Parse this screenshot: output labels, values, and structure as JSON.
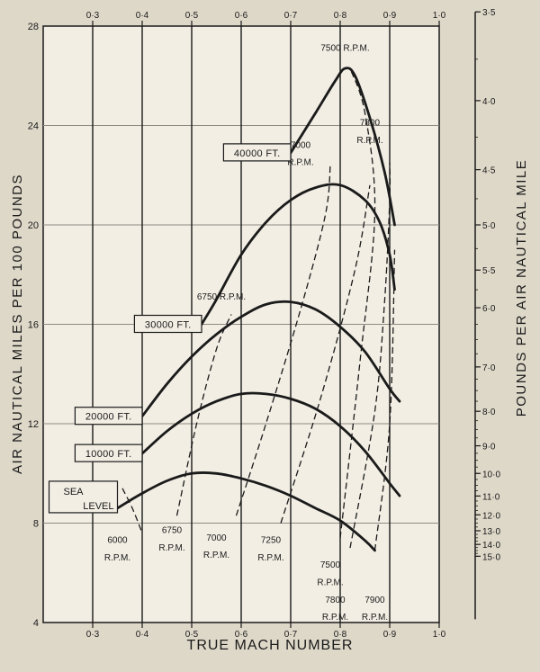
{
  "chart_data": {
    "type": "line",
    "xlabel": "TRUE MACH NUMBER",
    "ylabel": "AIR NAUTICAL MILES PER 100 POUNDS",
    "y2label": "POUNDS PER AIR NAUTICAL MILE",
    "xlim": [
      0.2,
      1.0
    ],
    "ylim": [
      4,
      28
    ],
    "grid": "major-vertical-and-horizontal",
    "x_ticks": [
      "0·3",
      "0·4",
      "0·5",
      "0·6",
      "0·7",
      "0·8",
      "0·9",
      "1·0"
    ],
    "x_tick_values": [
      0.3,
      0.4,
      0.5,
      0.6,
      0.7,
      0.8,
      0.9,
      1.0
    ],
    "y_ticks": [
      "4",
      "8",
      "12",
      "16",
      "20",
      "24",
      "28"
    ],
    "y_tick_values": [
      4,
      8,
      12,
      16,
      20,
      24,
      28
    ],
    "y2_ticks": [
      "3·5",
      "4·0",
      "4·5",
      "5·0",
      "5·5",
      "6·0",
      "7·0",
      "8·0",
      "9·0",
      "10·0",
      "11·0",
      "12·0",
      "13·0",
      "14·0",
      "15·0"
    ],
    "y2_tick_values": [
      3.5,
      4.0,
      4.5,
      5.0,
      5.5,
      6.0,
      7.0,
      8.0,
      9.0,
      10.0,
      11.0,
      12.0,
      13.0,
      14.0,
      15.0
    ],
    "series": [
      {
        "name": "SEA LEVEL",
        "x": [
          0.35,
          0.4,
          0.45,
          0.5,
          0.55,
          0.6,
          0.65,
          0.7,
          0.75,
          0.8,
          0.85,
          0.87
        ],
        "y": [
          8.6,
          9.2,
          9.7,
          10.0,
          10.0,
          9.8,
          9.5,
          9.1,
          8.6,
          8.1,
          7.3,
          6.9
        ]
      },
      {
        "name": "10000 FT.",
        "x": [
          0.4,
          0.45,
          0.5,
          0.55,
          0.6,
          0.65,
          0.7,
          0.75,
          0.8,
          0.85,
          0.9,
          0.92
        ],
        "y": [
          10.8,
          11.7,
          12.4,
          12.9,
          13.2,
          13.2,
          13.0,
          12.6,
          11.9,
          10.9,
          9.6,
          9.1
        ]
      },
      {
        "name": "20000 FT.",
        "x": [
          0.4,
          0.45,
          0.5,
          0.55,
          0.6,
          0.65,
          0.7,
          0.75,
          0.8,
          0.85,
          0.9,
          0.92
        ],
        "y": [
          12.3,
          13.6,
          14.7,
          15.6,
          16.3,
          16.8,
          16.9,
          16.6,
          15.9,
          14.9,
          13.4,
          12.9
        ]
      },
      {
        "name": "30000 FT.",
        "x": [
          0.52,
          0.55,
          0.6,
          0.65,
          0.7,
          0.75,
          0.8,
          0.85,
          0.88,
          0.9,
          0.91
        ],
        "y": [
          16.0,
          17.0,
          18.8,
          20.1,
          21.0,
          21.5,
          21.6,
          21.0,
          20.1,
          18.8,
          17.4
        ]
      },
      {
        "name": "40000 FT.",
        "x": [
          0.7,
          0.75,
          0.79,
          0.81,
          0.83,
          0.86,
          0.89,
          0.91
        ],
        "y": [
          22.9,
          24.5,
          25.8,
          26.3,
          26.0,
          24.3,
          22.1,
          20.0
        ]
      }
    ],
    "rpm_lines": [
      {
        "name": "6000 R.P.M.",
        "x": [
          0.36,
          0.38,
          0.4
        ],
        "y": [
          9.4,
          8.6,
          7.6
        ]
      },
      {
        "name": "6750 R.P.M.",
        "x": [
          0.47,
          0.51,
          0.55,
          0.58
        ],
        "y": [
          8.3,
          12.0,
          15.0,
          16.4
        ]
      },
      {
        "name": "7000 R.P.M.",
        "x": [
          0.59,
          0.65,
          0.72,
          0.77,
          0.78
        ],
        "y": [
          8.3,
          12.0,
          16.6,
          20.4,
          22.4
        ]
      },
      {
        "name": "7250 R.P.M.",
        "x": [
          0.68,
          0.76,
          0.83,
          0.86
        ],
        "y": [
          8.0,
          13.0,
          18.2,
          21.6
        ]
      },
      {
        "name": "7500 R.P.M.",
        "x": [
          0.8,
          0.84,
          0.87,
          0.85,
          0.82
        ],
        "y": [
          7.4,
          14.5,
          20.5,
          24.5,
          26.3
        ]
      },
      {
        "name": "7800 R.P.M.",
        "x": [
          0.82,
          0.87,
          0.89,
          0.9,
          0.9
        ],
        "y": [
          7.0,
          12.5,
          17.0,
          21.0,
          22.5
        ]
      },
      {
        "name": "7900 R.P.M.",
        "x": [
          0.87,
          0.9,
          0.91
        ],
        "y": [
          6.9,
          12.0,
          19.0
        ]
      }
    ],
    "annotations": [
      {
        "text": "7500 R.P.M.",
        "x": 0.81,
        "y": 27.0
      },
      {
        "text": "7800",
        "x": 0.86,
        "y": 24.0
      },
      {
        "text": "R.P.M.",
        "x": 0.86,
        "y": 23.3
      },
      {
        "text": "7000",
        "x": 0.72,
        "y": 23.1
      },
      {
        "text": "R.P.M.",
        "x": 0.72,
        "y": 22.4
      },
      {
        "text": "6750 R.P.M.",
        "x": 0.56,
        "y": 17.0
      },
      {
        "text": "6750",
        "x": 0.46,
        "y": 7.6
      },
      {
        "text": "R.P.M.",
        "x": 0.46,
        "y": 6.9
      },
      {
        "text": "7000",
        "x": 0.55,
        "y": 7.3
      },
      {
        "text": "R.P.M.",
        "x": 0.55,
        "y": 6.6
      },
      {
        "text": "7250",
        "x": 0.66,
        "y": 7.2
      },
      {
        "text": "R.P.M.",
        "x": 0.66,
        "y": 6.5
      },
      {
        "text": "6000",
        "x": 0.35,
        "y": 7.2
      },
      {
        "text": "R.P.M.",
        "x": 0.35,
        "y": 6.5
      },
      {
        "text": "7500",
        "x": 0.78,
        "y": 6.2
      },
      {
        "text": "R.P.M.",
        "x": 0.78,
        "y": 5.5
      },
      {
        "text": "7800",
        "x": 0.79,
        "y": 4.8
      },
      {
        "text": "R.P.M.",
        "x": 0.79,
        "y": 4.1
      },
      {
        "text": "7900",
        "x": 0.87,
        "y": 4.8
      },
      {
        "text": "R.P.M.",
        "x": 0.87,
        "y": 4.1
      }
    ],
    "altitude_labels": [
      {
        "text": "40000 FT.",
        "series": 4
      },
      {
        "text": "30000 FT.",
        "series": 3
      },
      {
        "text": "20000 FT.",
        "series": 2
      },
      {
        "text": "10000 FT.",
        "series": 1
      },
      {
        "text": "SEA",
        "series": 0,
        "line": 0
      },
      {
        "text": "LEVEL",
        "series": 0,
        "line": 1
      }
    ]
  }
}
